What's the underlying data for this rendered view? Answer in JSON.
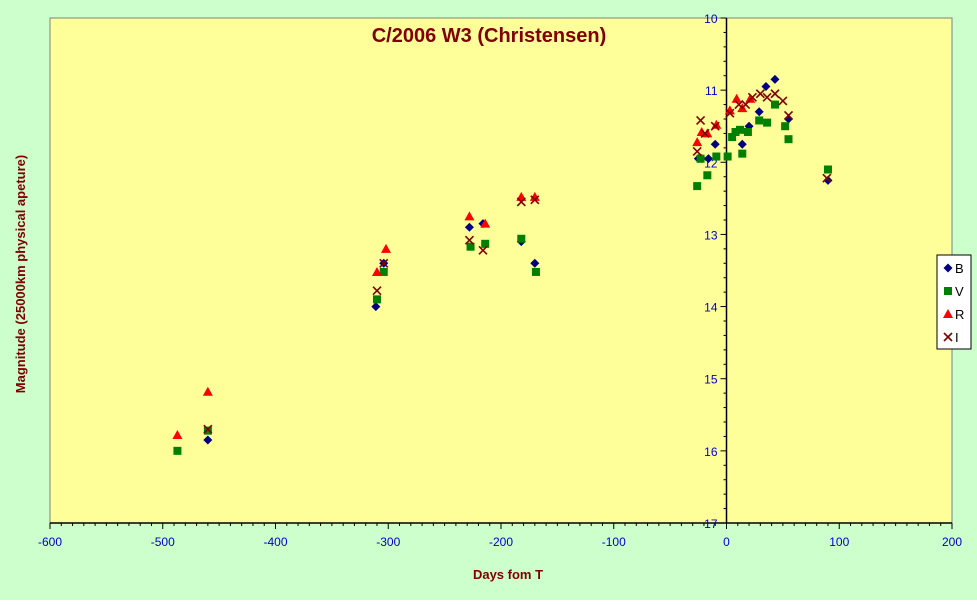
{
  "colors": {
    "background": "#ccffcc",
    "plot_background": "#ffff99",
    "axis": "#000000",
    "tick_label": "#0000cc",
    "title": "#800000",
    "axis_label": "#800000",
    "B": "#000080",
    "V": "#008000",
    "R": "#ff0000",
    "I": "#800000"
  },
  "chart_data": {
    "type": "scatter",
    "title": "C/2006 W3 (Christensen)",
    "xlabel": "Days fom  T",
    "ylabel": "Magnitude (25000km physical apeture)",
    "xlim": [
      -600,
      200
    ],
    "ylim": [
      10,
      17
    ],
    "y_inverted": true,
    "grid": false,
    "legend_position": "right",
    "x_ticks": [
      -600,
      -500,
      -400,
      -300,
      -200,
      -100,
      0,
      100,
      200
    ],
    "y_ticks": [
      10,
      11,
      12,
      13,
      14,
      15,
      16,
      17
    ],
    "series": [
      {
        "name": "B",
        "marker": "diamond",
        "points": [
          [
            -460,
            15.85
          ],
          [
            -311,
            14.0
          ],
          [
            -304,
            13.4
          ],
          [
            -228,
            12.9
          ],
          [
            -216,
            12.85
          ],
          [
            -182,
            13.1
          ],
          [
            -170,
            13.4
          ],
          [
            -25,
            11.95
          ],
          [
            -22,
            11.95
          ],
          [
            -16,
            11.95
          ],
          [
            -10,
            11.75
          ],
          [
            14,
            11.75
          ],
          [
            20,
            11.5
          ],
          [
            29,
            11.3
          ],
          [
            35,
            10.95
          ],
          [
            43,
            10.85
          ],
          [
            55,
            11.4
          ],
          [
            90,
            12.25
          ]
        ]
      },
      {
        "name": "V",
        "marker": "square",
        "points": [
          [
            -487,
            16.0
          ],
          [
            -460,
            15.72
          ],
          [
            -310,
            13.9
          ],
          [
            -304,
            13.52
          ],
          [
            -227,
            13.17
          ],
          [
            -214,
            13.13
          ],
          [
            -182,
            13.06
          ],
          [
            -169,
            13.52
          ],
          [
            -26,
            12.33
          ],
          [
            -23,
            11.95
          ],
          [
            -17,
            12.18
          ],
          [
            -9,
            11.92
          ],
          [
            1,
            11.92
          ],
          [
            5,
            11.65
          ],
          [
            8,
            11.58
          ],
          [
            12,
            11.55
          ],
          [
            14,
            11.88
          ],
          [
            19,
            11.58
          ],
          [
            29,
            11.42
          ],
          [
            36,
            11.45
          ],
          [
            43,
            11.2
          ],
          [
            52,
            11.5
          ],
          [
            55,
            11.68
          ],
          [
            90,
            12.1
          ]
        ]
      },
      {
        "name": "R",
        "marker": "triangle",
        "points": [
          [
            -487,
            15.78
          ],
          [
            -460,
            15.18
          ],
          [
            -310,
            13.52
          ],
          [
            -302,
            13.2
          ],
          [
            -228,
            12.75
          ],
          [
            -214,
            12.85
          ],
          [
            -182,
            12.48
          ],
          [
            -170,
            12.48
          ],
          [
            -26,
            11.72
          ],
          [
            -22,
            11.58
          ],
          [
            -17,
            11.6
          ],
          [
            -9,
            11.48
          ],
          [
            3,
            11.28
          ],
          [
            9,
            11.12
          ],
          [
            14,
            11.25
          ],
          [
            21,
            11.12
          ]
        ]
      },
      {
        "name": "I",
        "marker": "x",
        "points": [
          [
            -460,
            15.7
          ],
          [
            -310,
            13.78
          ],
          [
            -304,
            13.4
          ],
          [
            -228,
            13.08
          ],
          [
            -216,
            13.22
          ],
          [
            -182,
            12.55
          ],
          [
            -170,
            12.52
          ],
          [
            -26,
            11.85
          ],
          [
            -23,
            11.42
          ],
          [
            -19,
            11.6
          ],
          [
            -10,
            11.5
          ],
          [
            3,
            11.32
          ],
          [
            11,
            11.2
          ],
          [
            17,
            11.2
          ],
          [
            23,
            11.1
          ],
          [
            30,
            11.05
          ],
          [
            36,
            11.1
          ],
          [
            43,
            11.05
          ],
          [
            50,
            11.15
          ],
          [
            55,
            11.35
          ],
          [
            89,
            12.22
          ]
        ]
      }
    ]
  }
}
